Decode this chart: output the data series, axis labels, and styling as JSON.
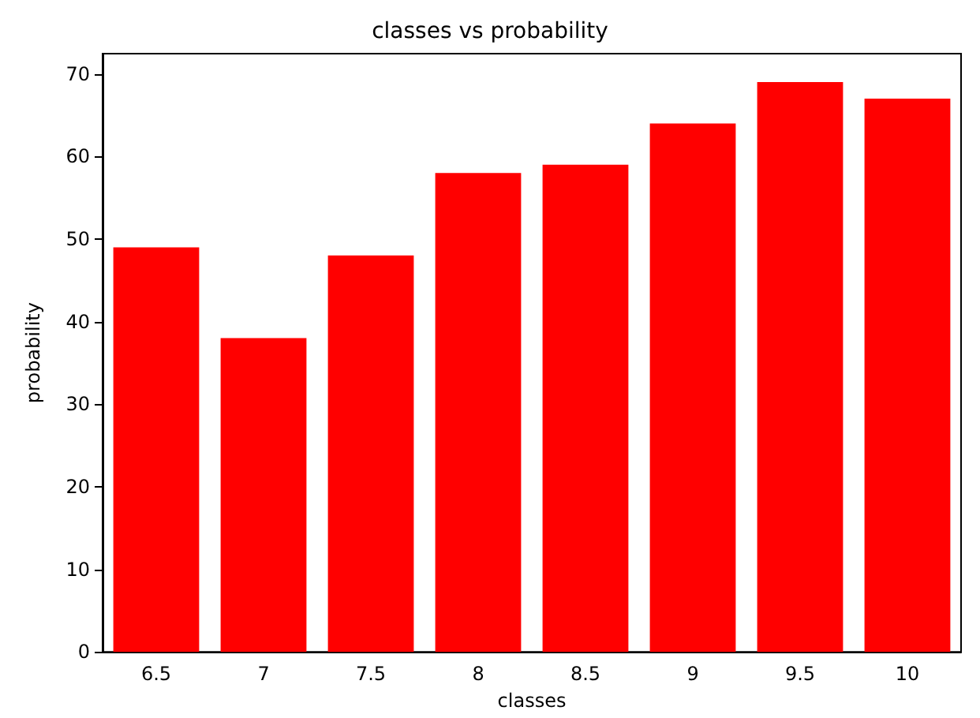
{
  "chart_data": {
    "type": "bar",
    "title": "classes vs probability",
    "xlabel": "classes",
    "ylabel": "probability",
    "categories": [
      "6.5",
      "7",
      "7.5",
      "8",
      "8.5",
      "9",
      "9.5",
      "10"
    ],
    "values": [
      49,
      38,
      48,
      58,
      59,
      64,
      69,
      67
    ],
    "color": "#ff0000",
    "ylim": [
      0,
      72.45
    ],
    "yticks": [
      0,
      10,
      20,
      30,
      40,
      50,
      60,
      70
    ],
    "grid": false
  }
}
